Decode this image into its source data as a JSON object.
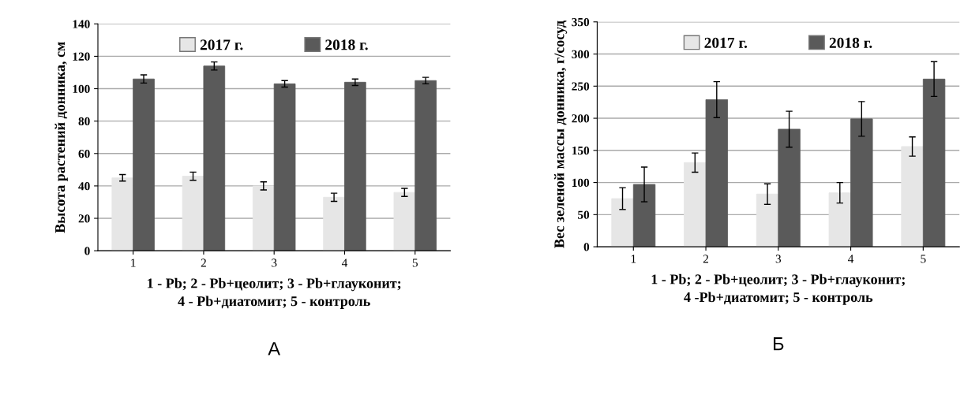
{
  "chart_data": [
    {
      "type": "bar",
      "ylabel": "Высота растений донника, см",
      "xlabel": "1 - Pb; 2 - Pb+цеолит; 3 - Pb+глауконит;\n4 - Pb+диатомит; 5 - контроль",
      "categories": [
        "1",
        "2",
        "3",
        "4",
        "5"
      ],
      "series": [
        {
          "name": "2017 г.",
          "color": "#e6e6e6",
          "values": [
            45,
            46,
            40,
            33,
            36
          ],
          "errors": [
            2,
            2.5,
            2.5,
            2.5,
            2.5
          ]
        },
        {
          "name": "2018 г.",
          "color": "#5a5a5a",
          "values": [
            106,
            114,
            103,
            104,
            105
          ],
          "errors": [
            2.5,
            2.5,
            2,
            2,
            2
          ]
        }
      ],
      "ylim": [
        0,
        140
      ],
      "yticks": [
        0,
        20,
        40,
        60,
        80,
        100,
        120,
        140
      ],
      "grid": "y",
      "legend": "top",
      "annotations": [
        "А"
      ]
    },
    {
      "type": "bar",
      "ylabel": "Вес зеленой массы донника, г/сосуд",
      "xlabel": "1 - Pb; 2 - Pb+цеолит; 3 - Pb+глауконит;\n4 -Pb+диатомит; 5 - контроль",
      "categories": [
        "1",
        "2",
        "3",
        "4",
        "5"
      ],
      "series": [
        {
          "name": "2017 г.",
          "color": "#e6e6e6",
          "values": [
            75,
            131,
            82,
            84,
            156
          ],
          "errors": [
            17,
            15,
            16,
            16,
            15
          ]
        },
        {
          "name": "2018 г.",
          "color": "#5a5a5a",
          "values": [
            97,
            229,
            183,
            199,
            261
          ],
          "errors": [
            27,
            28,
            28,
            27,
            27
          ]
        }
      ],
      "ylim": [
        0,
        350
      ],
      "yticks": [
        0,
        50,
        100,
        150,
        200,
        250,
        300,
        350
      ],
      "grid": "y",
      "legend": "top",
      "annotations": [
        "Б"
      ]
    }
  ]
}
